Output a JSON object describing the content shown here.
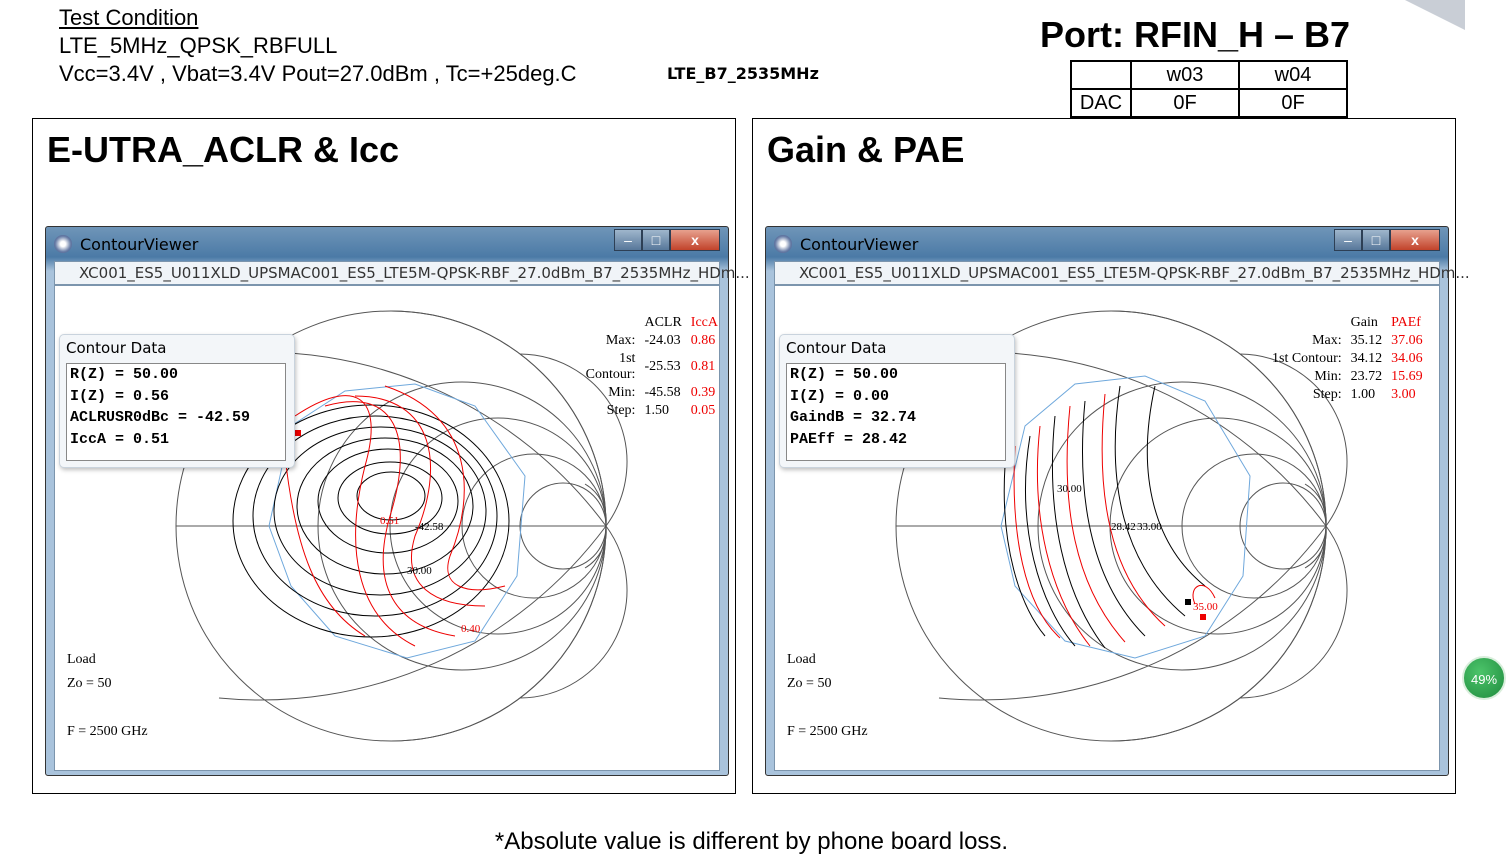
{
  "header": {
    "test_condition": "Test Condition",
    "mode": "LTE_5MHz_QPSK_RBFULL",
    "conditions": "Vcc=3.4V , Vbat=3.4V Pout=27.0dBm , Tc=+25deg.C",
    "band_label": "LTE_B7_2535MHz",
    "port": "Port: RFIN_H – B7"
  },
  "dac_table": {
    "cols": [
      "w03",
      "w04"
    ],
    "row_label": "DAC",
    "values": [
      "0F",
      "0F"
    ]
  },
  "panels": [
    {
      "heading": "E-UTRA_ACLR & Icc",
      "window_title": "ContourViewer",
      "path": "XC001_ES5_U011XLD_UPSMAC001_ES5_LTE5M-QPSK-RBF_27.0dBm_B7_2535MHz_HDm...",
      "contour_data_title": "Contour Data",
      "contour_lines": [
        "R(Z) = 50.00",
        "I(Z) = 0.56",
        "ACLRUSR0dBc = -42.59",
        "IccA = 0.51"
      ],
      "legend": {
        "col_black": "ACLR",
        "col_red": "IccA",
        "rows": [
          {
            "label": "Max:",
            "black": "-24.03",
            "red": "0.86"
          },
          {
            "label": "1st Contour:",
            "black": "-25.53",
            "red": "0.81"
          },
          {
            "label": "Min:",
            "black": "-45.58",
            "red": "0.39"
          },
          {
            "label": "Step:",
            "black": "1.50",
            "red": "0.05"
          }
        ]
      },
      "contour_labels": [
        "-42.58",
        "0.51",
        "30.00",
        "0.40"
      ],
      "load": "Load",
      "zo": "Zo = 50",
      "freq": "F = 2500 GHz"
    },
    {
      "heading": "Gain & PAE",
      "window_title": "ContourViewer",
      "path": "XC001_ES5_U011XLD_UPSMAC001_ES5_LTE5M-QPSK-RBF_27.0dBm_B7_2535MHz_HDm...",
      "contour_data_title": "Contour Data",
      "contour_lines": [
        "R(Z) = 50.00",
        "I(Z) = 0.00",
        "GaindB = 32.74",
        "PAEff = 28.42"
      ],
      "legend": {
        "col_black": "Gain",
        "col_red": "PAEf",
        "rows": [
          {
            "label": "Max:",
            "black": "35.12",
            "red": "37.06"
          },
          {
            "label": "1st Contour:",
            "black": "34.12",
            "red": "34.06"
          },
          {
            "label": "Min:",
            "black": "23.72",
            "red": "15.69"
          },
          {
            "label": "Step:",
            "black": "1.00",
            "red": "3.00"
          }
        ]
      },
      "contour_labels": [
        "30.00",
        "28.42",
        "33.00",
        "35.00"
      ],
      "load": "Load",
      "zo": "Zo = 50",
      "freq": "F = 2500 GHz"
    }
  ],
  "window_buttons": {
    "min": "–",
    "max": "□",
    "close": "x"
  },
  "badge": "49%",
  "footnote": "*Absolute value is different by phone board loss.",
  "colors": {
    "contour_black": "#000000",
    "contour_red": "#e00000",
    "boundary": "#6fa8dc",
    "grid": "#555555"
  }
}
